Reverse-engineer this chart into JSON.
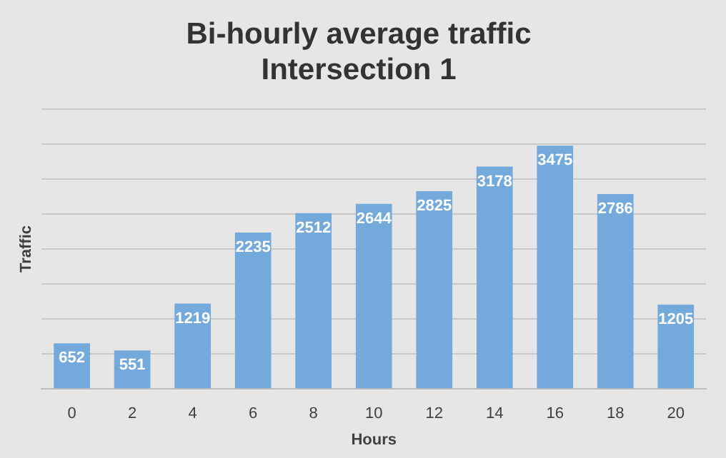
{
  "chart_data": {
    "type": "bar",
    "title": "Bi-hourly average traffic\nIntersection 1",
    "xlabel": "Hours",
    "ylabel": "Traffic",
    "categories": [
      "0",
      "2",
      "4",
      "6",
      "8",
      "10",
      "12",
      "14",
      "16",
      "18",
      "20"
    ],
    "values": [
      652,
      551,
      1219,
      2235,
      2512,
      2644,
      2825,
      3178,
      3475,
      2786,
      1205
    ],
    "color": "#74a9dc",
    "data_labels": true,
    "ylim": [
      0,
      4000
    ],
    "yticks": [
      0,
      {
        "value": 500,
        "label": null
      },
      {
        "value": 1000,
        "label": null
      },
      {
        "value": 1500,
        "label": null
      },
      {
        "value": 2000,
        "label": null
      },
      {
        "value": 2500,
        "label": null
      },
      {
        "value": 3000,
        "label": null
      },
      {
        "value": 3500,
        "label": null
      },
      {
        "value": 4000,
        "label": null
      }
    ],
    "tick_labels": "x",
    "grid": "y",
    "legend": false
  }
}
